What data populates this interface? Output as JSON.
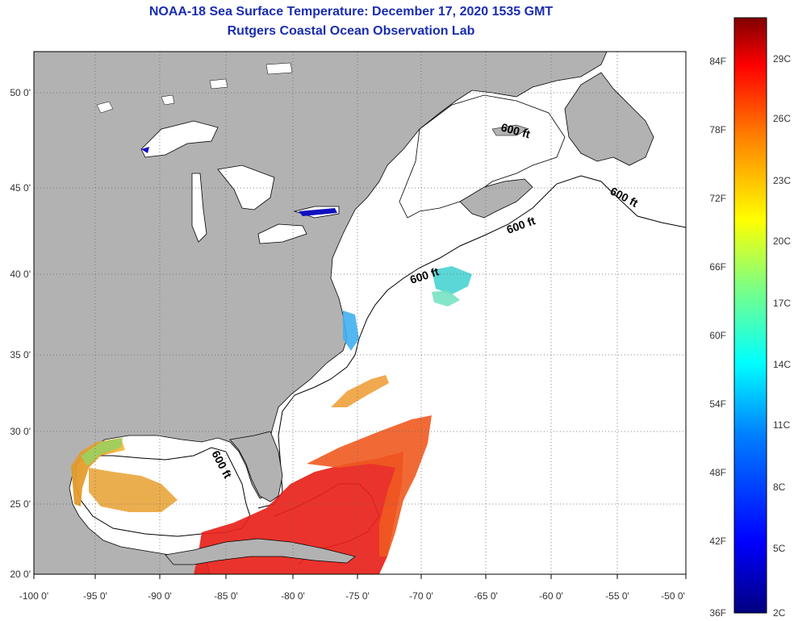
{
  "title_line1": "NOAA-18 Sea Surface Temperature:  December 17, 2020 1535 GMT",
  "title_line2": "Rutgers Coastal Ocean Observation Lab",
  "map": {
    "lon_ticks": [
      "-100 0'",
      "-95 0'",
      "-90 0'",
      "-85 0'",
      "-80 0'",
      "-75 0'",
      "-70 0'",
      "-65 0'",
      "-60 0'",
      "-55 0'",
      "-50 0'"
    ],
    "lat_ticks": [
      "50 0'",
      "45 0'",
      "40 0'",
      "35 0'",
      "30 0'",
      "25 0'",
      "20 0'"
    ],
    "contour_labels": [
      "600 ft",
      "600 ft",
      "600 ft",
      "600 ft",
      "600 ft"
    ],
    "colors": {
      "land": "#b2b2b2",
      "ocean": "#ffffff",
      "grid": "#777777"
    }
  },
  "colorbar": {
    "fahrenheit": [
      "84F",
      "78F",
      "72F",
      "66F",
      "60F",
      "54F",
      "48F",
      "42F",
      "36F"
    ],
    "celsius": [
      "29C",
      "26C",
      "23C",
      "20C",
      "17C",
      "14C",
      "11C",
      "8C",
      "5C",
      "2C"
    ]
  }
}
